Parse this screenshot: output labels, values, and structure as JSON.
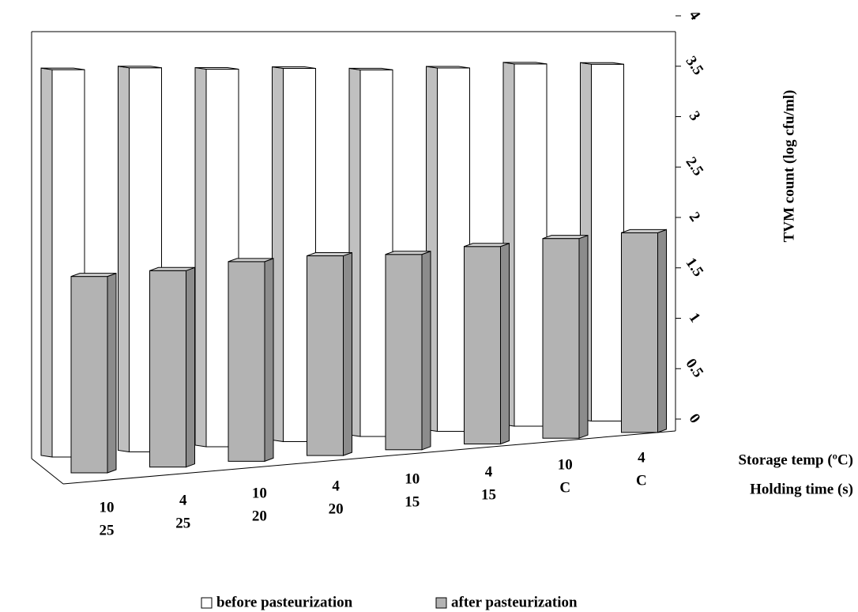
{
  "chart_data": {
    "type": "bar3d",
    "y_label": "TVM count  (log cfu/ml)",
    "x_label_1": "Storage temp (ºC)",
    "x_label_2": "Holding time (s)",
    "storage_temp": [
      "10",
      "4",
      "10",
      "4",
      "10",
      "4",
      "10",
      "4"
    ],
    "holding_time": [
      "25",
      "25",
      "20",
      "20",
      "15",
      "15",
      "C",
      "C"
    ],
    "series": [
      {
        "name": "before pasteurization",
        "color": "#ffffff",
        "values": [
          3.55,
          3.52,
          3.46,
          3.42,
          3.36,
          3.33,
          3.32,
          3.27
        ]
      },
      {
        "name": "after pasteurization",
        "color": "#b3b3b3",
        "values": [
          1.8,
          1.8,
          1.83,
          1.83,
          1.79,
          1.81,
          1.83,
          1.83
        ]
      }
    ],
    "ylim": [
      0,
      4
    ],
    "yticks": [
      0,
      0.5,
      1,
      1.5,
      2,
      2.5,
      3,
      3.5,
      4
    ]
  }
}
